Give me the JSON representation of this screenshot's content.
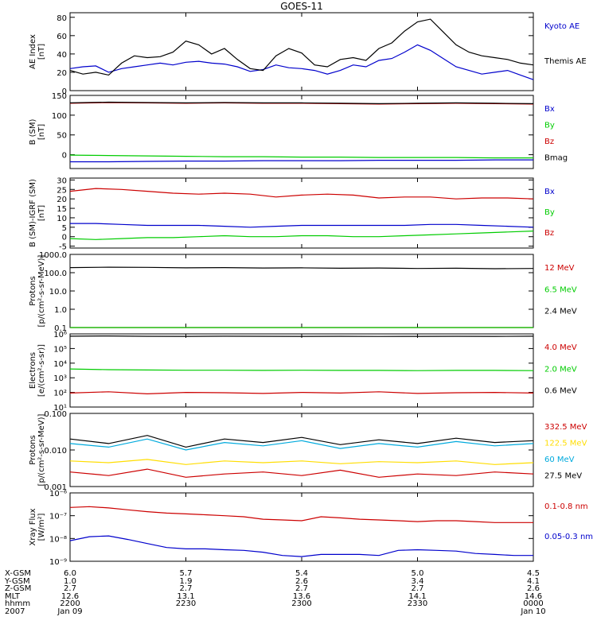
{
  "chart_data": [
    {
      "type": "line",
      "panel": "ae",
      "title": "GOES-11",
      "ylabel": [
        "AE Index",
        "[nT]"
      ],
      "ylim": [
        0,
        85
      ],
      "yticks": [
        {
          "v": 0,
          "t": "0"
        },
        {
          "v": 20,
          "t": "20"
        },
        {
          "v": 40,
          "t": "40"
        },
        {
          "v": 60,
          "t": "60"
        },
        {
          "v": 80,
          "t": "80"
        }
      ],
      "x": [
        0,
        4,
        8,
        12,
        16,
        20,
        24,
        28,
        32,
        36,
        40,
        44,
        48,
        52,
        56,
        60,
        64,
        68,
        72,
        76,
        80,
        84,
        88,
        92,
        96,
        100,
        104,
        108,
        112,
        116,
        120,
        124,
        128,
        132,
        136,
        140,
        144
      ],
      "series": [
        {
          "name": "Kyoto AE",
          "color": "#0000cc",
          "values": [
            24,
            26,
            27,
            20,
            24,
            26,
            28,
            30,
            28,
            31,
            32,
            30,
            29,
            26,
            21,
            23,
            28,
            25,
            24,
            22,
            18,
            22,
            28,
            26,
            33,
            35,
            42,
            50,
            44,
            35,
            26,
            22,
            18,
            20,
            22,
            17,
            12
          ]
        },
        {
          "name": "Themis AE",
          "color": "#000000",
          "values": [
            22,
            18,
            20,
            17,
            30,
            38,
            36,
            37,
            42,
            54,
            50,
            40,
            46,
            34,
            24,
            22,
            38,
            46,
            41,
            28,
            26,
            34,
            36,
            33,
            46,
            52,
            65,
            75,
            78,
            64,
            50,
            42,
            38,
            36,
            34,
            30,
            28
          ]
        }
      ]
    },
    {
      "type": "line",
      "panel": "b_sm",
      "ylabel": [
        "B (SM)",
        "[nT]"
      ],
      "ylim": [
        -35,
        150
      ],
      "yticks": [
        {
          "v": 0,
          "t": "0"
        },
        {
          "v": 50,
          "t": "50"
        },
        {
          "v": 100,
          "t": "100"
        },
        {
          "v": 150,
          "t": "150"
        }
      ],
      "x": [
        0,
        12,
        24,
        36,
        48,
        60,
        72,
        84,
        96,
        108,
        120,
        132,
        144
      ],
      "series": [
        {
          "name": "Bx",
          "color": "#0000cc",
          "values": [
            -18,
            -18,
            -17,
            -16,
            -16,
            -15,
            -15,
            -15,
            -14,
            -14,
            -14,
            -13,
            -13
          ]
        },
        {
          "name": "By",
          "color": "#00cc00",
          "values": [
            -1,
            -2,
            -3,
            -4,
            -5,
            -5,
            -6,
            -6,
            -7,
            -7,
            -7,
            -8,
            -8
          ]
        },
        {
          "name": "Bz",
          "color": "#cc0000",
          "values": [
            130,
            132,
            131,
            130,
            131,
            130,
            130,
            129,
            128,
            129,
            130,
            129,
            128
          ]
        },
        {
          "name": "Bmag",
          "color": "#000000",
          "values": [
            131,
            133,
            132,
            131,
            132,
            131,
            131,
            130,
            129,
            130,
            131,
            130,
            129
          ]
        }
      ]
    },
    {
      "type": "line",
      "panel": "b_igrf",
      "ylabel": [
        "B (SM)-IGRF (SM)",
        "[nT]"
      ],
      "ylim": [
        -6,
        31
      ],
      "yticks": [
        {
          "v": -5,
          "t": "-5"
        },
        {
          "v": 0,
          "t": "0"
        },
        {
          "v": 5,
          "t": "5"
        },
        {
          "v": 10,
          "t": "10"
        },
        {
          "v": 15,
          "t": "15"
        },
        {
          "v": 20,
          "t": "20"
        },
        {
          "v": 25,
          "t": "25"
        },
        {
          "v": 30,
          "t": "30"
        }
      ],
      "x": [
        0,
        8,
        16,
        24,
        32,
        40,
        48,
        56,
        64,
        72,
        80,
        88,
        96,
        104,
        112,
        120,
        128,
        136,
        144
      ],
      "series": [
        {
          "name": "Bx",
          "color": "#0000cc",
          "values": [
            7,
            7,
            6.5,
            6,
            6,
            6,
            5.5,
            5,
            5.5,
            6,
            6,
            6,
            6,
            6,
            6.5,
            6.5,
            6,
            5.5,
            5
          ]
        },
        {
          "name": "By",
          "color": "#00cc00",
          "values": [
            -1,
            -1.5,
            -1,
            -0.5,
            -0.5,
            0,
            0.5,
            0,
            0,
            0.5,
            0.5,
            0,
            0,
            0.5,
            1,
            1.5,
            2,
            2.5,
            3
          ]
        },
        {
          "name": "Bz",
          "color": "#cc0000",
          "values": [
            24,
            25.5,
            25,
            24,
            23,
            22.5,
            23,
            22.5,
            21,
            22,
            22.5,
            22,
            20.5,
            21,
            21,
            20,
            20.5,
            20.5,
            20
          ]
        }
      ]
    },
    {
      "type": "line",
      "panel": "protons_hi",
      "scale": "log",
      "ylabel": [
        "Protons",
        "[p/(cm²-s-sr-MeV)]"
      ],
      "ylim": [
        0.1,
        1000
      ],
      "yticks": [
        {
          "v": 0.1,
          "t": "0.1"
        },
        {
          "v": 1,
          "t": "1.0"
        },
        {
          "v": 10,
          "t": "10.0"
        },
        {
          "v": 100,
          "t": "100.0"
        },
        {
          "v": 1000,
          "t": "1000.0"
        }
      ],
      "x": [
        0,
        12,
        24,
        36,
        48,
        60,
        72,
        84,
        96,
        108,
        120,
        132,
        144
      ],
      "series": [
        {
          "name": "12 MeV",
          "color": "#cc0000",
          "values": [
            0.1,
            0.1,
            0.1,
            0.1,
            0.1,
            0.1,
            0.1,
            0.1,
            0.1,
            0.1,
            0.1,
            0.1,
            0.1
          ]
        },
        {
          "name": "6.5 MeV",
          "color": "#00cc00",
          "values": [
            0.1,
            0.1,
            0.1,
            0.1,
            0.1,
            0.1,
            0.1,
            0.1,
            0.1,
            0.1,
            0.1,
            0.1,
            0.1
          ]
        },
        {
          "name": "2.4 MeV",
          "color": "#000000",
          "values": [
            190,
            200,
            195,
            185,
            190,
            180,
            185,
            175,
            180,
            170,
            175,
            165,
            170
          ]
        }
      ]
    },
    {
      "type": "line",
      "panel": "electrons",
      "scale": "log",
      "ylabel": [
        "Electrons",
        "[e/(cm²-s-sr)]"
      ],
      "ylim": [
        10,
        1000000
      ],
      "yticks": [
        {
          "v": 10,
          "t": "10¹"
        },
        {
          "v": 100,
          "t": "10²"
        },
        {
          "v": 1000,
          "t": "10³"
        },
        {
          "v": 10000,
          "t": "10⁴"
        },
        {
          "v": 100000,
          "t": "10⁵"
        },
        {
          "v": 1000000,
          "t": "10⁶"
        }
      ],
      "x": [
        0,
        12,
        24,
        36,
        48,
        60,
        72,
        84,
        96,
        108,
        120,
        132,
        144
      ],
      "series": [
        {
          "name": "4.0 MeV",
          "color": "#cc0000",
          "values": [
            90,
            110,
            80,
            100,
            95,
            85,
            100,
            90,
            110,
            85,
            95,
            100,
            90
          ]
        },
        {
          "name": "2.0 MeV",
          "color": "#00cc00",
          "values": [
            4000,
            3600,
            3400,
            3300,
            3300,
            3200,
            3300,
            3200,
            3200,
            3100,
            3200,
            3200,
            3100
          ]
        },
        {
          "name": "0.6 MeV",
          "color": "#000000",
          "values": [
            700000,
            720000,
            690000,
            680000,
            700000,
            690000,
            680000,
            690000,
            670000,
            680000,
            690000,
            680000,
            700000
          ]
        }
      ]
    },
    {
      "type": "line",
      "panel": "protons_lo",
      "scale": "log",
      "ylabel": [
        "Protons",
        "[p/(cm²-s-sr-MeV)]"
      ],
      "ylim": [
        0.001,
        0.1
      ],
      "yticks": [
        {
          "v": 0.001,
          "t": "0.001"
        },
        {
          "v": 0.01,
          "t": "0.010"
        },
        {
          "v": 0.1,
          "t": "0.100"
        }
      ],
      "x": [
        0,
        12,
        24,
        36,
        48,
        60,
        72,
        84,
        96,
        108,
        120,
        132,
        144
      ],
      "series": [
        {
          "name": "332.5 MeV",
          "color": "#cc0000",
          "values": [
            0.0025,
            0.002,
            0.003,
            0.0018,
            0.0022,
            0.0025,
            0.002,
            0.0028,
            0.0018,
            0.0022,
            0.002,
            0.0025,
            0.0022
          ]
        },
        {
          "name": "122.5 MeV",
          "color": "#ffdd00",
          "values": [
            0.005,
            0.0045,
            0.0055,
            0.004,
            0.005,
            0.0045,
            0.005,
            0.0042,
            0.0048,
            0.0045,
            0.005,
            0.004,
            0.0045
          ]
        },
        {
          "name": "60 MeV",
          "color": "#00aadd",
          "values": [
            0.015,
            0.012,
            0.02,
            0.01,
            0.016,
            0.013,
            0.018,
            0.011,
            0.015,
            0.012,
            0.017,
            0.013,
            0.015
          ]
        },
        {
          "name": "27.5 MeV",
          "color": "#000000",
          "values": [
            0.02,
            0.015,
            0.025,
            0.012,
            0.02,
            0.016,
            0.022,
            0.014,
            0.019,
            0.015,
            0.021,
            0.016,
            0.018
          ]
        }
      ]
    },
    {
      "type": "line",
      "panel": "xray",
      "scale": "log",
      "ylabel": [
        "Xray Flux",
        "[W/m²]"
      ],
      "ylim": [
        1e-09,
        1e-06
      ],
      "yticks": [
        {
          "v": 1e-09,
          "t": "10⁻⁹"
        },
        {
          "v": 1e-08,
          "t": "10⁻⁸"
        },
        {
          "v": 1e-07,
          "t": "10⁻⁷"
        },
        {
          "v": 1e-06,
          "t": "10⁻⁶"
        }
      ],
      "x": [
        0,
        6,
        12,
        18,
        24,
        30,
        36,
        42,
        48,
        54,
        60,
        66,
        72,
        78,
        84,
        90,
        96,
        102,
        108,
        114,
        120,
        126,
        132,
        138,
        144
      ],
      "series": [
        {
          "name": "0.1-0.8 nm",
          "color": "#cc0000",
          "values": [
            2.3e-07,
            2.5e-07,
            2.2e-07,
            1.8e-07,
            1.5e-07,
            1.3e-07,
            1.2e-07,
            1.1e-07,
            1e-07,
            9e-08,
            7e-08,
            6.5e-08,
            6e-08,
            9e-08,
            8e-08,
            7e-08,
            6.5e-08,
            6e-08,
            5.5e-08,
            6e-08,
            6e-08,
            5.5e-08,
            5e-08,
            5e-08,
            5e-08
          ]
        },
        {
          "name": "0.05-0.3 nm",
          "color": "#0000cc",
          "values": [
            8e-09,
            1.2e-08,
            1.3e-08,
            9e-09,
            6e-09,
            4e-09,
            3.5e-09,
            3.5e-09,
            3.2e-09,
            3e-09,
            2.5e-09,
            1.8e-09,
            1.6e-09,
            2e-09,
            2e-09,
            2e-09,
            1.8e-09,
            3e-09,
            3.2e-09,
            3e-09,
            2.8e-09,
            2.2e-09,
            2e-09,
            1.8e-09,
            1.8e-09
          ]
        }
      ]
    }
  ],
  "ephemeris": {
    "rows": [
      {
        "label": "X-GSM",
        "values": [
          "6.0",
          "5.7",
          "5.4",
          "5.0",
          "4.5"
        ]
      },
      {
        "label": "Y-GSM",
        "values": [
          "1.0",
          "1.9",
          "2.6",
          "3.4",
          "4.1"
        ]
      },
      {
        "label": "Z-GSM",
        "values": [
          "2.7",
          "2.7",
          "2.7",
          "2.7",
          "2.6"
        ]
      },
      {
        "label": "MLT",
        "values": [
          "12.6",
          "13.1",
          "13.6",
          "14.1",
          "14.6"
        ]
      },
      {
        "label": "hhmm",
        "values": [
          "2200",
          "2230",
          "2300",
          "2330",
          "0000"
        ]
      },
      {
        "label": "2007",
        "values": [
          "Jan 09",
          "",
          "",
          "",
          "Jan 10"
        ]
      }
    ]
  }
}
